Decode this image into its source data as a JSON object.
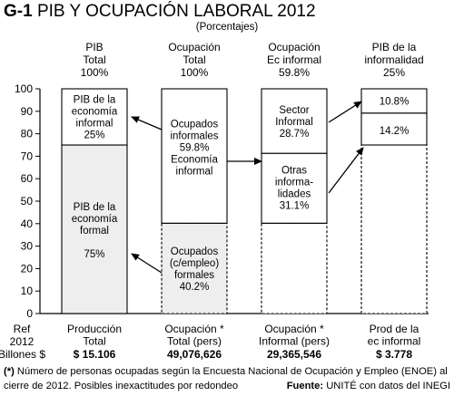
{
  "figure_id": "G-1",
  "title": "PIB Y OCUPACIÓN LABORAL 2012",
  "subtitle": "(Porcentajes)",
  "chart_data": {
    "type": "bar",
    "stacked": true,
    "ylim": [
      0,
      100
    ],
    "yticks": [
      0,
      10,
      20,
      30,
      40,
      50,
      60,
      70,
      80,
      90,
      100
    ],
    "grid": false,
    "bars": [
      {
        "header": [
          "PIB",
          "Total",
          "100%"
        ],
        "bottom_labels": [
          "Producción",
          "Total"
        ],
        "value_label": "$ 15.106",
        "segments": [
          {
            "from": 0,
            "to": 75,
            "fill": "#eeeeee",
            "dashed": false,
            "text": [
              "PIB de la",
              "economía",
              "formal",
              "",
              "75%"
            ],
            "text_center": 37
          },
          {
            "from": 75,
            "to": 100,
            "fill": "#ffffff",
            "dashed": false,
            "text": [
              "PIB de la",
              "economía",
              "informal",
              "25%"
            ],
            "text_center": 87.5
          }
        ]
      },
      {
        "header": [
          "Ocupación",
          "Total",
          "100%"
        ],
        "bottom_labels": [
          "Ocupación *",
          "Total (pers)"
        ],
        "value_label": "49,076,626",
        "segments": [
          {
            "from": 0,
            "to": 40.2,
            "fill": "#eeeeee",
            "dashed": true,
            "text": [
              "Ocupados",
              "(c/empleo)",
              "formales",
              "40.2%"
            ],
            "text_center": 20
          },
          {
            "from": 40.2,
            "to": 100,
            "fill": "#ffffff",
            "dashed": false,
            "text": [
              "Ocupados",
              "informales",
              "59.8%",
              "Economía",
              "informal"
            ],
            "text_center": 74
          }
        ]
      },
      {
        "header": [
          "Ocupación",
          "Ec informal",
          "59.8%"
        ],
        "bottom_labels": [
          "Ocupación *",
          "Informal (pers)"
        ],
        "value_label": "29,365,546",
        "segments": [
          {
            "from": 0,
            "to": 40.2,
            "fill": "#ffffff",
            "dashed": true,
            "text": [],
            "text_center": 20
          },
          {
            "from": 40.2,
            "to": 71.3,
            "fill": "#ffffff",
            "dashed": false,
            "text": [
              "Otras",
              "informa-",
              "lidades",
              "31.1%"
            ],
            "text_center": 56
          },
          {
            "from": 71.3,
            "to": 100,
            "fill": "#ffffff",
            "dashed": false,
            "text": [
              "Sector",
              "Informal",
              "28.7%"
            ],
            "text_center": 85.5
          }
        ]
      },
      {
        "header": [
          "PIB de la",
          "informalidad",
          "25%"
        ],
        "bottom_labels": [
          "Prod de la",
          "ec informal"
        ],
        "value_label": "$ 3.778",
        "segments": [
          {
            "from": 0,
            "to": 75,
            "fill": "#ffffff",
            "dashed": true,
            "text": [],
            "text_center": 37
          },
          {
            "from": 75,
            "to": 89.2,
            "fill": "#ffffff",
            "dashed": false,
            "text": [
              "14.2%"
            ],
            "text_center": 81.5
          },
          {
            "from": 89.2,
            "to": 100,
            "fill": "#ffffff",
            "dashed": false,
            "text": [
              "10.8%"
            ],
            "text_center": 94.5
          }
        ]
      }
    ],
    "row_labels": [
      "Ref",
      "2012",
      "Billones $"
    ]
  },
  "footnote_mark": "(*)",
  "footnote_line1": " Número de personas ocupadas según la Encuesta Nacional de Ocupación y Empleo (ENOE) al",
  "footnote_line2": "cierre de 2012.  Posibles inexactitudes por redondeo",
  "source_label": "Fuente:",
  "source_text": " UNITÉ con datos del INEGI"
}
